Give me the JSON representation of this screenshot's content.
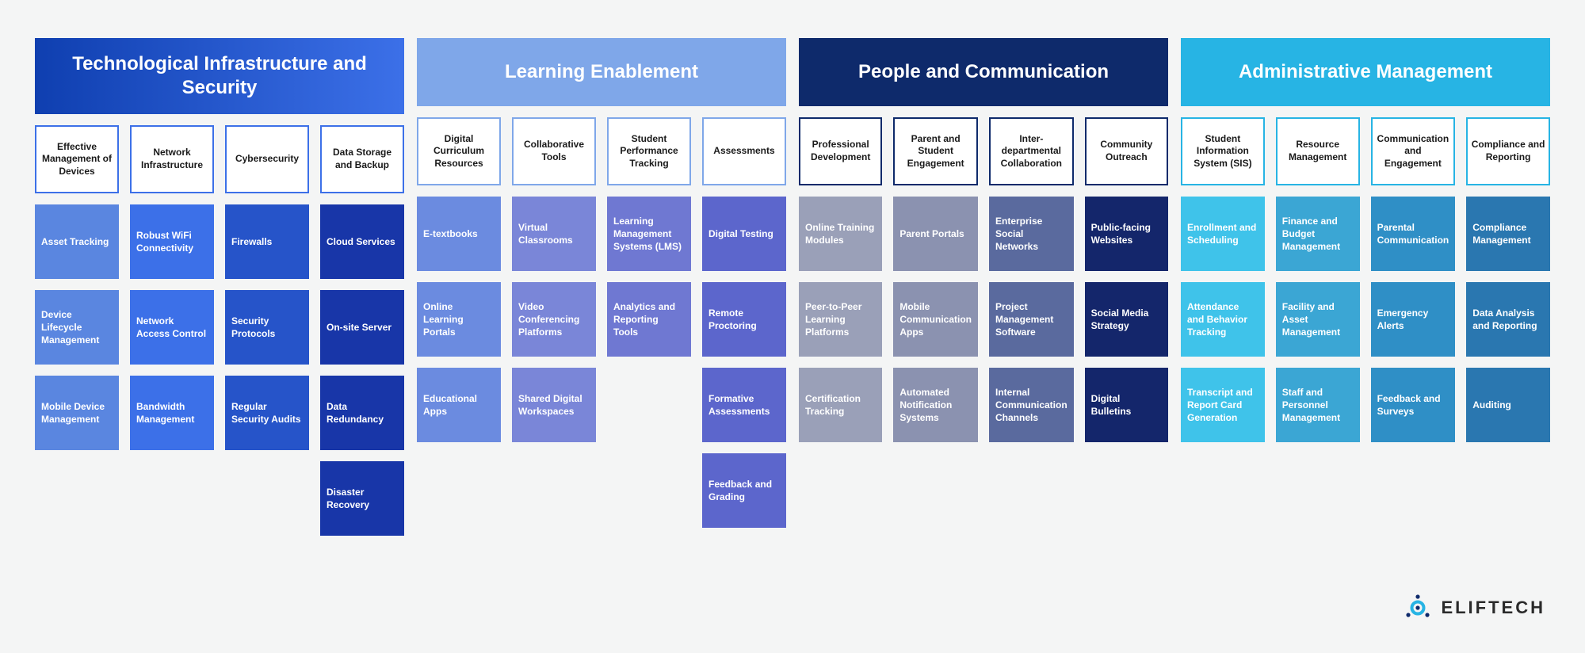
{
  "brand": "ELIFTECH",
  "brand_fill": "#27b4e4",
  "brand_stroke": "#0e2a6b",
  "pillars": [
    {
      "title": "Technological Infrastructure and Security",
      "header_bg": "linear-gradient(90deg,#0f3fb0,#3c70e8)",
      "border": "#3c70e8",
      "columns": [
        {
          "sub": "Effective Management of Devices",
          "color": "#5a86e0",
          "cells": [
            "Asset Tracking",
            "Device Lifecycle Management",
            "Mobile Device Management"
          ]
        },
        {
          "sub": "Network Infrastructure",
          "color": "#3c70e8",
          "cells": [
            "Robust WiFi Connectivity",
            "Network Access Control",
            "Bandwidth Management"
          ]
        },
        {
          "sub": "Cybersecurity",
          "color": "#2654c9",
          "cells": [
            "Firewalls",
            "Security Protocols",
            "Regular Security Audits"
          ]
        },
        {
          "sub": "Data Storage and Backup",
          "color": "#1836a8",
          "cells": [
            "Cloud Services",
            "On-site Server",
            "Data Redundancy",
            "Disaster Recovery"
          ]
        }
      ]
    },
    {
      "title": "Learning Enablement",
      "header_bg": "#7fa7e9",
      "border": "#7fa7e9",
      "columns": [
        {
          "sub": "Digital Curriculum Resources",
          "color": "#6b8be0",
          "cells": [
            "E-textbooks",
            "Online Learning Portals",
            "Educational Apps"
          ]
        },
        {
          "sub": "Collaborative Tools",
          "color": "#7a86d8",
          "cells": [
            "Virtual Classrooms",
            "Video Conferencing Platforms",
            "Shared Digital Workspaces"
          ]
        },
        {
          "sub": "Student Performance Tracking",
          "color": "#6f78d2",
          "cells": [
            "Learning Management Systems (LMS)",
            "Analytics and Reporting Tools"
          ]
        },
        {
          "sub": "Assessments",
          "color": "#5c66cc",
          "cells": [
            "Digital Testing",
            "Remote Proctoring",
            "Formative Assessments",
            "Feedback and Grading"
          ]
        }
      ]
    },
    {
      "title": "People and Communication",
      "header_bg": "#0e2a6b",
      "border": "#0e2a6b",
      "columns": [
        {
          "sub": "Professional Development",
          "color": "#9aa0b8",
          "cells": [
            "Online Training Modules",
            "Peer-to-Peer Learning Platforms",
            "Certification Tracking"
          ]
        },
        {
          "sub": "Parent and Student Engagement",
          "color": "#8b92b0",
          "cells": [
            "Parent Portals",
            "Mobile Communication Apps",
            "Automated Notification Systems"
          ]
        },
        {
          "sub": "Inter-departmental Collaboration",
          "color": "#5a6a9e",
          "cells": [
            "Enterprise Social Networks",
            "Project Management Software",
            "Internal Communication Channels"
          ]
        },
        {
          "sub": "Community Outreach",
          "color": "#14266b",
          "cells": [
            "Public-facing Websites",
            "Social Media Strategy",
            "Digital Bulletins"
          ]
        }
      ]
    },
    {
      "title": "Administrative Management",
      "header_bg": "#27b4e4",
      "border": "#27b4e4",
      "columns": [
        {
          "sub": "Student Information System (SIS)",
          "color": "#3fc3ea",
          "cells": [
            "Enrollment and Scheduling",
            "Attendance and Behavior Tracking",
            "Transcript and Report Card Generation"
          ]
        },
        {
          "sub": "Resource Management",
          "color": "#3ba6d4",
          "cells": [
            "Finance and Budget Management",
            "Facility and Asset Management",
            "Staff and Personnel Management"
          ]
        },
        {
          "sub": "Communication and Engagement",
          "color": "#2f8fc6",
          "cells": [
            "Parental Communication",
            "Emergency Alerts",
            "Feedback and Surveys"
          ]
        },
        {
          "sub": "Compliance and Reporting",
          "color": "#2a77b0",
          "cells": [
            "Compliance Management",
            "Data Analysis and Reporting",
            "Auditing"
          ]
        }
      ]
    }
  ]
}
